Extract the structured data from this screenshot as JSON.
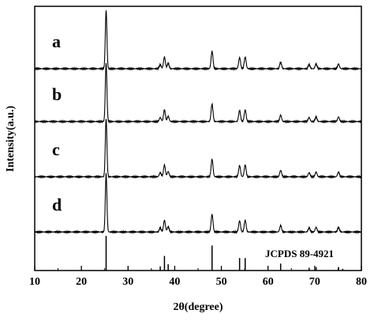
{
  "chart_data": {
    "type": "line",
    "xlabel": "2θ(degree)",
    "ylabel": "Intensity(a.u.)",
    "xlim": [
      10,
      80
    ],
    "x_ticks": [
      "10",
      "20",
      "30",
      "40",
      "50",
      "60",
      "70",
      "80"
    ],
    "y_ticks_shown": false,
    "grid": false,
    "series": [
      {
        "name": "a",
        "peaks": [
          {
            "x": 25.3,
            "y": 1.0
          },
          {
            "x": 36.9,
            "y": 0.07
          },
          {
            "x": 37.8,
            "y": 0.2
          },
          {
            "x": 38.6,
            "y": 0.09
          },
          {
            "x": 48.0,
            "y": 0.3
          },
          {
            "x": 53.9,
            "y": 0.19
          },
          {
            "x": 55.1,
            "y": 0.2
          },
          {
            "x": 62.7,
            "y": 0.11
          },
          {
            "x": 68.8,
            "y": 0.07
          },
          {
            "x": 70.3,
            "y": 0.08
          },
          {
            "x": 75.1,
            "y": 0.08
          }
        ]
      },
      {
        "name": "b",
        "peaks": [
          {
            "x": 25.3,
            "y": 1.0
          },
          {
            "x": 36.9,
            "y": 0.07
          },
          {
            "x": 37.8,
            "y": 0.2
          },
          {
            "x": 38.6,
            "y": 0.09
          },
          {
            "x": 48.0,
            "y": 0.3
          },
          {
            "x": 53.9,
            "y": 0.19
          },
          {
            "x": 55.1,
            "y": 0.2
          },
          {
            "x": 62.7,
            "y": 0.11
          },
          {
            "x": 68.8,
            "y": 0.07
          },
          {
            "x": 70.3,
            "y": 0.08
          },
          {
            "x": 75.1,
            "y": 0.08
          }
        ]
      },
      {
        "name": "c",
        "peaks": [
          {
            "x": 25.3,
            "y": 1.0
          },
          {
            "x": 36.9,
            "y": 0.07
          },
          {
            "x": 37.8,
            "y": 0.2
          },
          {
            "x": 38.6,
            "y": 0.09
          },
          {
            "x": 48.0,
            "y": 0.3
          },
          {
            "x": 53.9,
            "y": 0.19
          },
          {
            "x": 55.1,
            "y": 0.2
          },
          {
            "x": 62.7,
            "y": 0.11
          },
          {
            "x": 68.8,
            "y": 0.07
          },
          {
            "x": 70.3,
            "y": 0.08
          },
          {
            "x": 75.1,
            "y": 0.08
          }
        ]
      },
      {
        "name": "d",
        "peaks": [
          {
            "x": 25.3,
            "y": 1.0
          },
          {
            "x": 36.9,
            "y": 0.07
          },
          {
            "x": 37.8,
            "y": 0.2
          },
          {
            "x": 38.6,
            "y": 0.09
          },
          {
            "x": 48.0,
            "y": 0.3
          },
          {
            "x": 53.9,
            "y": 0.19
          },
          {
            "x": 55.1,
            "y": 0.2
          },
          {
            "x": 62.7,
            "y": 0.11
          },
          {
            "x": 68.8,
            "y": 0.07
          },
          {
            "x": 70.3,
            "y": 0.08
          },
          {
            "x": 75.1,
            "y": 0.08
          }
        ]
      }
    ],
    "reference": {
      "name": "JCPDS 89-4921",
      "lines": [
        {
          "x": 25.3,
          "y": 1.0
        },
        {
          "x": 36.9,
          "y": 0.12
        },
        {
          "x": 37.8,
          "y": 0.42
        },
        {
          "x": 38.6,
          "y": 0.18
        },
        {
          "x": 48.0,
          "y": 0.72
        },
        {
          "x": 53.9,
          "y": 0.36
        },
        {
          "x": 55.1,
          "y": 0.36
        },
        {
          "x": 62.7,
          "y": 0.2
        },
        {
          "x": 68.8,
          "y": 0.08
        },
        {
          "x": 70.3,
          "y": 0.1
        },
        {
          "x": 75.1,
          "y": 0.1
        },
        {
          "x": 76.0,
          "y": 0.05
        }
      ]
    }
  }
}
